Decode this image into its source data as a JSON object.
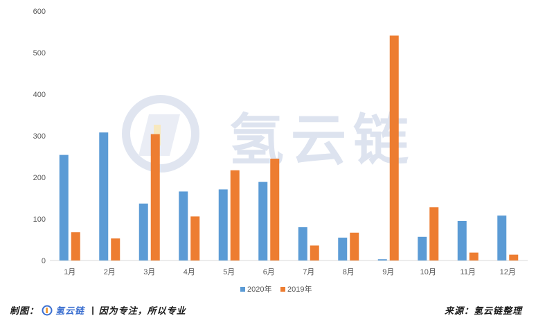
{
  "chart_data": {
    "type": "bar",
    "categories": [
      "1月",
      "2月",
      "3月",
      "4月",
      "5月",
      "6月",
      "7月",
      "8月",
      "9月",
      "10月",
      "11月",
      "12月"
    ],
    "series": [
      {
        "name": "2020年",
        "color": "#5b9bd5",
        "values": [
          254,
          308,
          137,
          166,
          171,
          189,
          80,
          55,
          3,
          57,
          95,
          108
        ]
      },
      {
        "name": "2019年",
        "color": "#ed7d31",
        "values": [
          68,
          53,
          304,
          106,
          217,
          245,
          36,
          67,
          541,
          128,
          19,
          14
        ]
      }
    ],
    "y_ticks": [
      "0",
      "100",
      "200",
      "300",
      "400",
      "500",
      "600"
    ],
    "ylim": [
      0,
      600
    ],
    "grid": false,
    "legend_position": "bottom"
  },
  "watermark": {
    "text": "氢云链",
    "color": "#dde3ef"
  },
  "footer": {
    "left_label": "制图：",
    "left_brand": "氢云链",
    "left_sep": "|",
    "left_slogan": "因为专注，所以专业",
    "right_text": "来源：氢云链整理"
  }
}
